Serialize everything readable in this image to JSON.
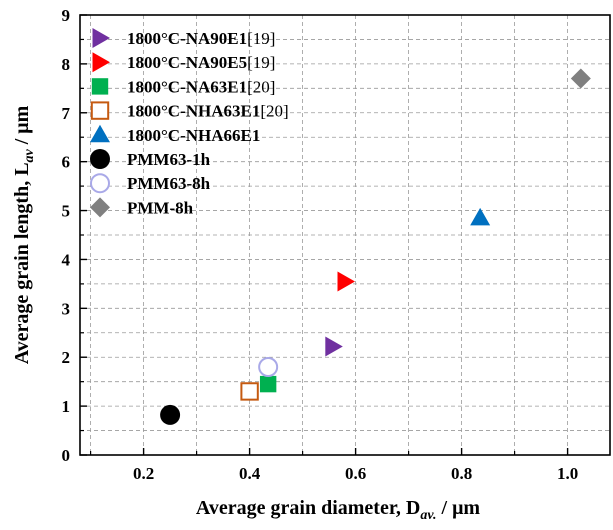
{
  "chart_data": {
    "type": "scatter",
    "title": "",
    "xlabel": {
      "main": "Average grain diameter, D",
      "sub": "av.",
      "tail": " / μm"
    },
    "ylabel": {
      "main": "Average grain length, L",
      "sub": "av",
      "tail": " / μm"
    },
    "xlim": [
      0.08,
      1.08
    ],
    "ylim": [
      0,
      9
    ],
    "xticks": [
      0.2,
      0.4,
      0.6,
      0.8,
      1.0
    ],
    "xtick_labels": [
      "0.2",
      "0.4",
      "0.6",
      "0.8",
      "1.0"
    ],
    "yticks": [
      0,
      1,
      2,
      3,
      4,
      5,
      6,
      7,
      8,
      9
    ],
    "ytick_labels": [
      "0",
      "1",
      "2",
      "3",
      "4",
      "5",
      "6",
      "7",
      "8",
      "9"
    ],
    "grid": true,
    "legend_position": "top-left",
    "series": [
      {
        "name": "1800°C-NA90E1",
        "ref": "[19]",
        "marker": "triangle-right",
        "color": "#7030a0",
        "filled": true,
        "x": [
          0.557
        ],
        "y": [
          2.22
        ]
      },
      {
        "name": "1800°C-NA90E5",
        "ref": "[19]",
        "marker": "triangle-right",
        "color": "#ff0000",
        "filled": true,
        "x": [
          0.58
        ],
        "y": [
          3.55
        ]
      },
      {
        "name": "1800°C-NA63E1",
        "ref": "[20]",
        "marker": "square",
        "color": "#00b050",
        "filled": true,
        "x": [
          0.435
        ],
        "y": [
          1.45
        ]
      },
      {
        "name": "1800°C-NHA63E1",
        "ref": "[20]",
        "marker": "square",
        "color": "#c55a11",
        "filled": false,
        "x": [
          0.4
        ],
        "y": [
          1.3
        ]
      },
      {
        "name": "1800°C-NHA66E1",
        "ref": "",
        "marker": "triangle-up",
        "color": "#0070c0",
        "filled": true,
        "x": [
          0.835
        ],
        "y": [
          4.85
        ]
      },
      {
        "name": "PMM63-1h",
        "ref": "",
        "marker": "circle",
        "color": "#000000",
        "filled": true,
        "x": [
          0.25
        ],
        "y": [
          0.82
        ]
      },
      {
        "name": "PMM63-8h",
        "ref": "",
        "marker": "circle",
        "color": "#a9a9e8",
        "filled": false,
        "x": [
          0.435
        ],
        "y": [
          1.8
        ]
      },
      {
        "name": "PMM-8h",
        "ref": "",
        "marker": "diamond",
        "color": "#808080",
        "filled": true,
        "x": [
          1.025
        ],
        "y": [
          7.7
        ]
      }
    ]
  }
}
